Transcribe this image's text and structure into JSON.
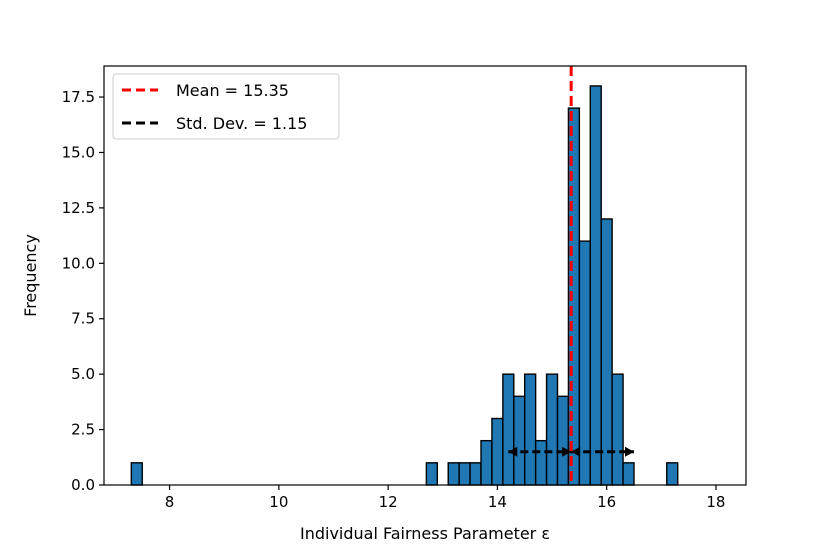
{
  "chart_data": {
    "type": "bar",
    "xlabel": "Individual Fairness Parameter ε",
    "ylabel": "Frequency",
    "xlim": [
      6.8,
      18.55
    ],
    "ylim": [
      0,
      18.9
    ],
    "xticks": [
      8,
      10,
      12,
      14,
      16,
      18
    ],
    "xtick_labels": [
      "8",
      "10",
      "12",
      "14",
      "16",
      "18"
    ],
    "yticks": [
      0,
      2.5,
      5,
      7.5,
      10,
      12.5,
      15,
      17.5
    ],
    "ytick_labels": [
      "0.0",
      "2.5",
      "5.0",
      "7.5",
      "10.0",
      "12.5",
      "15.0",
      "17.5"
    ],
    "grid": false,
    "legend_position": "top-left",
    "bins": [
      {
        "x0": 7.3,
        "x1": 7.5,
        "count": 1
      },
      {
        "x0": 12.7,
        "x1": 12.9,
        "count": 1
      },
      {
        "x0": 13.1,
        "x1": 13.3,
        "count": 1
      },
      {
        "x0": 13.3,
        "x1": 13.5,
        "count": 1
      },
      {
        "x0": 13.5,
        "x1": 13.7,
        "count": 1
      },
      {
        "x0": 13.7,
        "x1": 13.9,
        "count": 2
      },
      {
        "x0": 13.9,
        "x1": 14.1,
        "count": 3
      },
      {
        "x0": 14.1,
        "x1": 14.3,
        "count": 5
      },
      {
        "x0": 14.3,
        "x1": 14.5,
        "count": 4
      },
      {
        "x0": 14.5,
        "x1": 14.7,
        "count": 5
      },
      {
        "x0": 14.7,
        "x1": 14.9,
        "count": 2
      },
      {
        "x0": 14.9,
        "x1": 15.1,
        "count": 5
      },
      {
        "x0": 15.1,
        "x1": 15.3,
        "count": 4
      },
      {
        "x0": 15.3,
        "x1": 15.5,
        "count": 17
      },
      {
        "x0": 15.5,
        "x1": 15.7,
        "count": 11
      },
      {
        "x0": 15.7,
        "x1": 15.9,
        "count": 18
      },
      {
        "x0": 15.9,
        "x1": 16.1,
        "count": 12
      },
      {
        "x0": 16.1,
        "x1": 16.3,
        "count": 5
      },
      {
        "x0": 16.3,
        "x1": 16.5,
        "count": 1
      },
      {
        "x0": 17.1,
        "x1": 17.3,
        "count": 1
      }
    ],
    "mean": 15.35,
    "std": 1.15,
    "std_arrow_y": 1.5,
    "std_arrow_x_start": 14.2,
    "std_arrow_x_end": 16.5,
    "colors": {
      "bar_fill": "#1f77b4",
      "bar_edge": "#000000",
      "mean_line": "#ff0000",
      "std_line": "#000000"
    },
    "legend": [
      {
        "label": "Mean = 15.35",
        "color": "#ff0000"
      },
      {
        "label": "Std. Dev. = 1.15",
        "color": "#000000"
      }
    ]
  }
}
